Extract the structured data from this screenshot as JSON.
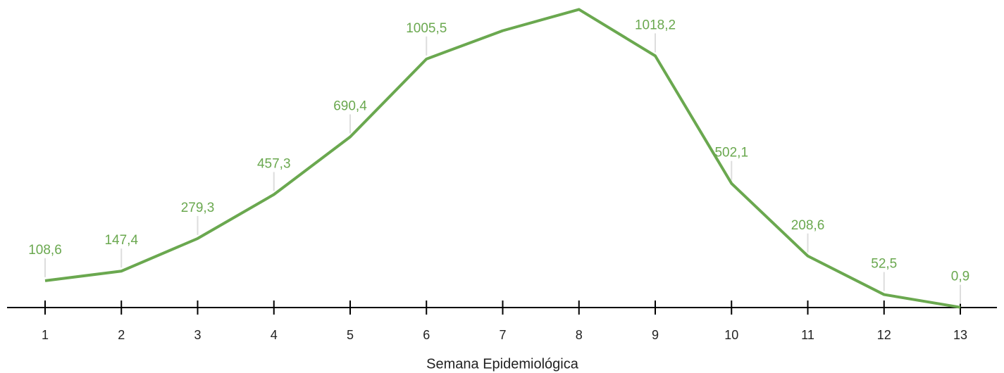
{
  "chart_data": {
    "type": "line",
    "x_label": "Semana Epidemiológica",
    "categories": [
      1,
      2,
      3,
      4,
      5,
      6,
      7,
      8,
      9,
      10,
      11,
      12,
      13
    ],
    "values": [
      108.6,
      147.4,
      279.3,
      457.3,
      690.4,
      1005.5,
      1120,
      1206,
      1018.2,
      502.1,
      208.6,
      52.5,
      0.9
    ],
    "value_labels": [
      "108,6",
      "147,4",
      "279,3",
      "457,3",
      "690,4",
      "1005,5",
      null,
      null,
      "1018,2",
      "502,1",
      "208,6",
      "52,5",
      "0,9"
    ],
    "color": "#6aa84f",
    "ylim": [
      0,
      1230
    ]
  }
}
